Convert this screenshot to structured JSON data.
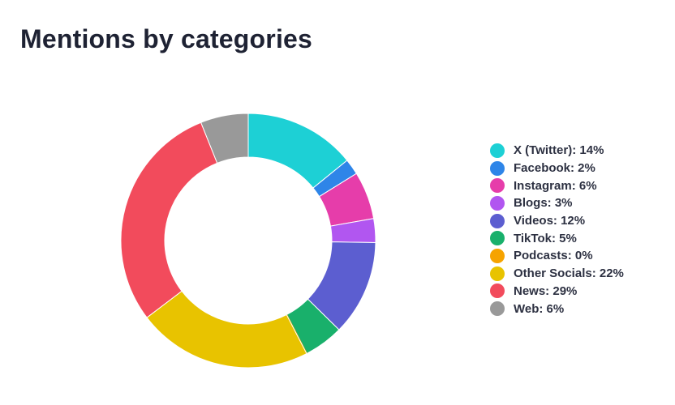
{
  "chart_data": {
    "type": "pie",
    "variant": "donut",
    "title": "Mentions by categories",
    "legend_position": "right",
    "slices": [
      {
        "label": "X (Twitter)",
        "percent": 14,
        "legend_text": "X (Twitter): 14%",
        "color": "#1dd0d5"
      },
      {
        "label": "Facebook",
        "percent": 2,
        "legend_text": "Facebook: 2%",
        "color": "#2e85e8"
      },
      {
        "label": "Instagram",
        "percent": 6,
        "legend_text": "Instagram: 6%",
        "color": "#e63daa"
      },
      {
        "label": "Blogs",
        "percent": 3,
        "legend_text": "Blogs: 3%",
        "color": "#b156f0"
      },
      {
        "label": "Videos",
        "percent": 12,
        "legend_text": "Videos: 12%",
        "color": "#5c5ed0"
      },
      {
        "label": "TikTok",
        "percent": 5,
        "legend_text": "TikTok: 5%",
        "color": "#19b06b"
      },
      {
        "label": "Podcasts",
        "percent": 0,
        "legend_text": "Podcasts: 0%",
        "color": "#f6a300"
      },
      {
        "label": "Other Socials",
        "percent": 22,
        "legend_text": "Other Socials: 22%",
        "color": "#e8c300"
      },
      {
        "label": "News",
        "percent": 29,
        "legend_text": "News: 29%",
        "color": "#f24b5c"
      },
      {
        "label": "Web",
        "percent": 6,
        "legend_text": "Web: 6%",
        "color": "#999999"
      }
    ]
  }
}
